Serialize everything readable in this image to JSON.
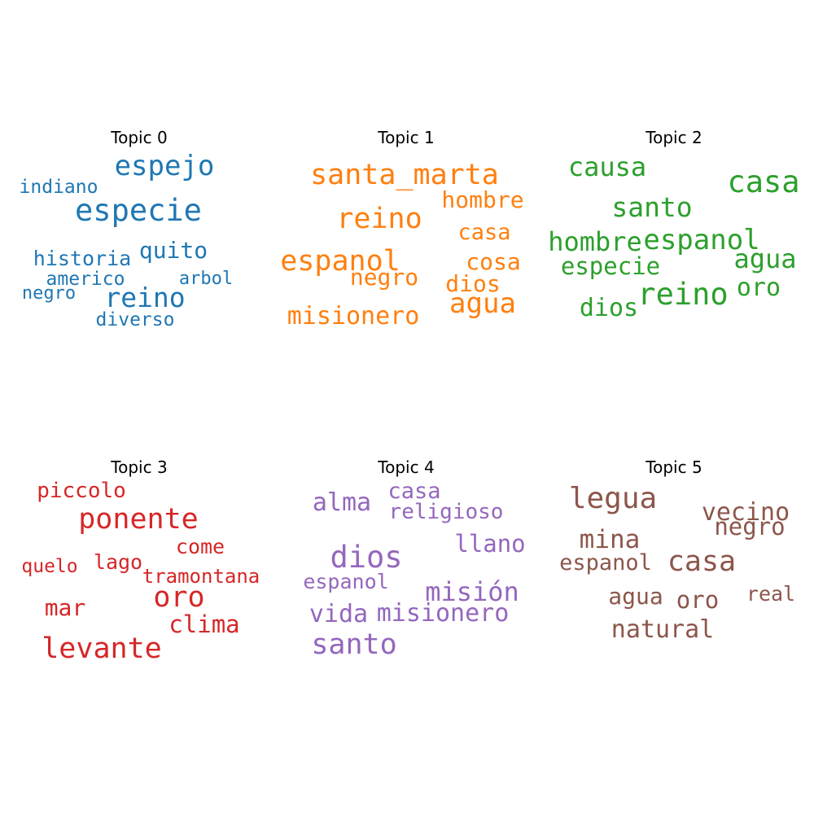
{
  "chart_data": [
    {
      "type": "wordcloud",
      "title": "Topic 0",
      "color": "#1f77b4",
      "words": [
        "espejo",
        "indiano",
        "especie",
        "historia",
        "quito",
        "americo",
        "arbol",
        "negro",
        "reino",
        "diverso"
      ]
    },
    {
      "type": "wordcloud",
      "title": "Topic 1",
      "color": "#ff7f0e",
      "words": [
        "santa_marta",
        "hombre",
        "reino",
        "casa",
        "espanol",
        "cosa",
        "negro",
        "dios",
        "agua",
        "misionero"
      ]
    },
    {
      "type": "wordcloud",
      "title": "Topic 2",
      "color": "#2ca02c",
      "words": [
        "causa",
        "casa",
        "santo",
        "hombre",
        "espanol",
        "agua",
        "especie",
        "reino",
        "oro",
        "dios"
      ]
    },
    {
      "type": "wordcloud",
      "title": "Topic 3",
      "color": "#d62728",
      "words": [
        "piccolo",
        "ponente",
        "come",
        "quelo",
        "lago",
        "tramontana",
        "oro",
        "mar",
        "clima",
        "levante"
      ]
    },
    {
      "type": "wordcloud",
      "title": "Topic 4",
      "color": "#9467bd",
      "words": [
        "alma",
        "casa",
        "religioso",
        "llano",
        "dios",
        "espanol",
        "misión",
        "vida",
        "misionero",
        "santo"
      ]
    },
    {
      "type": "wordcloud",
      "title": "Topic 5",
      "color": "#8c564b",
      "words": [
        "legua",
        "vecino",
        "negro",
        "mina",
        "espanol",
        "casa",
        "agua",
        "oro",
        "real",
        "natural"
      ]
    }
  ]
}
